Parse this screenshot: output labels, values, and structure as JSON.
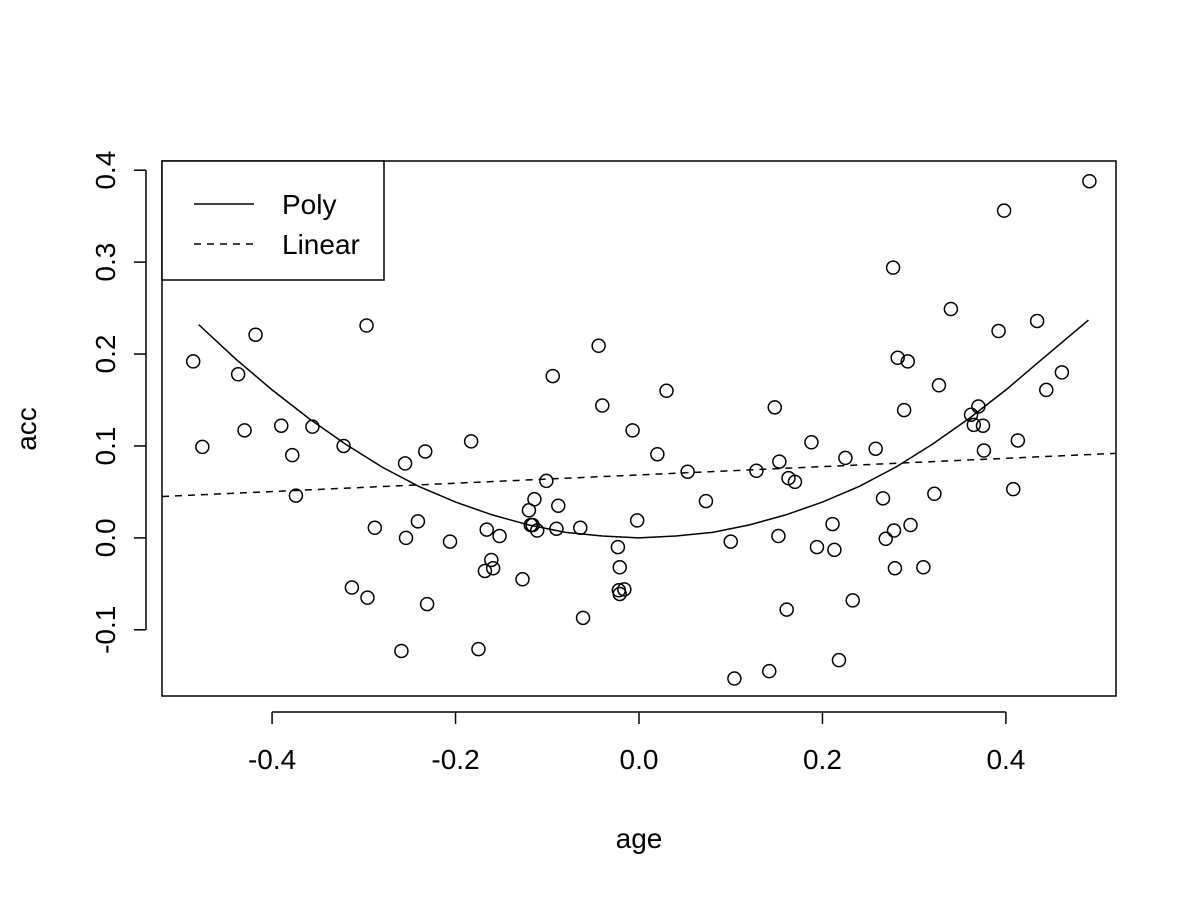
{
  "chart_data": {
    "type": "scatter",
    "title": "",
    "xlabel": "age",
    "ylabel": "acc",
    "xlim": [
      -0.52,
      0.52
    ],
    "ylim": [
      -0.172,
      0.41
    ],
    "x_ticks": [
      -0.4,
      -0.2,
      0.0,
      0.2,
      0.4
    ],
    "x_tick_labels": [
      "-0.4",
      "-0.2",
      "0.0",
      "0.2",
      "0.4"
    ],
    "y_ticks": [
      -0.1,
      0.0,
      0.1,
      0.2,
      0.3,
      0.4
    ],
    "y_tick_labels": [
      "-0.1",
      "0.0",
      "0.1",
      "0.2",
      "0.3",
      "0.4"
    ],
    "grid": false,
    "legend": {
      "position": "top-left",
      "entries": [
        {
          "label": "Poly",
          "line": "solid"
        },
        {
          "label": "Linear",
          "line": "dashed"
        }
      ]
    },
    "points": [
      [
        -0.486,
        0.192
      ],
      [
        -0.476,
        0.099
      ],
      [
        -0.437,
        0.178
      ],
      [
        -0.43,
        0.117
      ],
      [
        -0.418,
        0.221
      ],
      [
        -0.39,
        0.122
      ],
      [
        -0.378,
        0.09
      ],
      [
        -0.374,
        0.046
      ],
      [
        -0.356,
        0.121
      ],
      [
        -0.322,
        0.1
      ],
      [
        -0.313,
        -0.054
      ],
      [
        -0.297,
        0.231
      ],
      [
        -0.296,
        -0.065
      ],
      [
        -0.288,
        0.011
      ],
      [
        -0.259,
        -0.123
      ],
      [
        -0.255,
        0.081
      ],
      [
        -0.254,
        0.0
      ],
      [
        -0.241,
        0.018
      ],
      [
        -0.233,
        0.094
      ],
      [
        -0.231,
        -0.072
      ],
      [
        -0.206,
        -0.004
      ],
      [
        -0.183,
        0.105
      ],
      [
        -0.175,
        -0.121
      ],
      [
        -0.168,
        -0.036
      ],
      [
        -0.166,
        0.009
      ],
      [
        -0.161,
        -0.024
      ],
      [
        -0.159,
        -0.033
      ],
      [
        -0.152,
        0.002
      ],
      [
        -0.127,
        -0.045
      ],
      [
        -0.12,
        0.03
      ],
      [
        -0.118,
        0.014
      ],
      [
        -0.116,
        0.014
      ],
      [
        -0.114,
        0.042
      ],
      [
        -0.111,
        0.008
      ],
      [
        -0.101,
        0.062
      ],
      [
        -0.094,
        0.176
      ],
      [
        -0.09,
        0.01
      ],
      [
        -0.088,
        0.035
      ],
      [
        -0.064,
        0.011
      ],
      [
        -0.061,
        -0.087
      ],
      [
        -0.044,
        0.209
      ],
      [
        -0.04,
        0.144
      ],
      [
        -0.023,
        -0.01
      ],
      [
        -0.021,
        -0.032
      ],
      [
        -0.022,
        -0.057
      ],
      [
        -0.021,
        -0.061
      ],
      [
        -0.016,
        -0.056
      ],
      [
        -0.007,
        0.117
      ],
      [
        -0.002,
        0.019
      ],
      [
        0.02,
        0.091
      ],
      [
        0.03,
        0.16
      ],
      [
        0.053,
        0.072
      ],
      [
        0.073,
        0.04
      ],
      [
        0.1,
        -0.004
      ],
      [
        0.104,
        -0.153
      ],
      [
        0.128,
        0.073
      ],
      [
        0.142,
        -0.145
      ],
      [
        0.148,
        0.142
      ],
      [
        0.152,
        0.002
      ],
      [
        0.153,
        0.083
      ],
      [
        0.161,
        -0.078
      ],
      [
        0.163,
        0.065
      ],
      [
        0.17,
        0.061
      ],
      [
        0.188,
        0.104
      ],
      [
        0.194,
        -0.01
      ],
      [
        0.211,
        0.015
      ],
      [
        0.213,
        -0.013
      ],
      [
        0.218,
        -0.133
      ],
      [
        0.225,
        0.087
      ],
      [
        0.233,
        -0.068
      ],
      [
        0.258,
        0.097
      ],
      [
        0.266,
        0.043
      ],
      [
        0.269,
        -0.001
      ],
      [
        0.277,
        0.294
      ],
      [
        0.278,
        0.008
      ],
      [
        0.279,
        -0.033
      ],
      [
        0.282,
        0.196
      ],
      [
        0.289,
        0.139
      ],
      [
        0.293,
        0.192
      ],
      [
        0.296,
        0.014
      ],
      [
        0.31,
        -0.032
      ],
      [
        0.322,
        0.048
      ],
      [
        0.327,
        0.166
      ],
      [
        0.34,
        0.249
      ],
      [
        0.362,
        0.134
      ],
      [
        0.365,
        0.123
      ],
      [
        0.37,
        0.143
      ],
      [
        0.375,
        0.122
      ],
      [
        0.376,
        0.095
      ],
      [
        0.392,
        0.225
      ],
      [
        0.398,
        0.356
      ],
      [
        0.408,
        0.053
      ],
      [
        0.413,
        0.106
      ],
      [
        0.434,
        0.236
      ],
      [
        0.444,
        0.161
      ],
      [
        0.461,
        0.18
      ],
      [
        0.491,
        0.388
      ]
    ],
    "series": [
      {
        "name": "Poly",
        "style": "solid",
        "x": [
          -0.48,
          -0.44,
          -0.4,
          -0.36,
          -0.32,
          -0.28,
          -0.24,
          -0.2,
          -0.16,
          -0.12,
          -0.08,
          -0.04,
          0.0,
          0.04,
          0.08,
          0.12,
          0.16,
          0.2,
          0.24,
          0.28,
          0.32,
          0.36,
          0.4,
          0.44,
          0.49
        ],
        "values": [
          0.232,
          0.195,
          0.161,
          0.13,
          0.102,
          0.077,
          0.056,
          0.039,
          0.025,
          0.014,
          0.006,
          0.002,
          0.0,
          0.002,
          0.006,
          0.014,
          0.025,
          0.039,
          0.056,
          0.077,
          0.102,
          0.13,
          0.161,
          0.195,
          0.237
        ]
      },
      {
        "name": "Linear",
        "style": "dashed",
        "x": [
          -0.52,
          0.52
        ],
        "values": [
          0.045,
          0.092
        ]
      }
    ]
  }
}
